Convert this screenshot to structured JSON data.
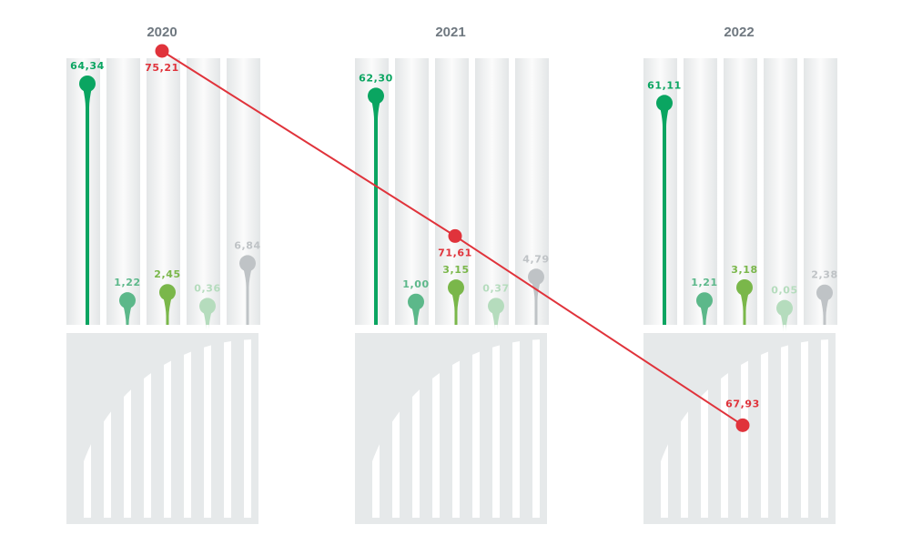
{
  "chart_data": {
    "type": "lollipop",
    "categories": [
      "2020",
      "2021",
      "2022"
    ],
    "series": [
      {
        "values": [
          "64,34",
          "62,30",
          "61,11"
        ],
        "numeric": [
          64.34,
          62.3,
          61.11
        ],
        "color": "#0aa561"
      },
      {
        "values": [
          "1,22",
          "1,00",
          "1,21"
        ],
        "numeric": [
          1.22,
          1.0,
          1.21
        ],
        "color": "#5cb88a"
      },
      {
        "values": [
          "2,45",
          "3,15",
          "3,18"
        ],
        "numeric": [
          2.45,
          3.15,
          3.18
        ],
        "color": "#7ab74a"
      },
      {
        "values": [
          "0,36",
          "0,37",
          "0,05"
        ],
        "numeric": [
          0.36,
          0.37,
          0.05
        ],
        "color": "#b5dcbd"
      },
      {
        "values": [
          "6,84",
          "4,79",
          "2,38"
        ],
        "numeric": [
          6.84,
          4.79,
          2.38
        ],
        "color": "#bfc3c6"
      }
    ],
    "overlay_line": {
      "values": [
        "75,21",
        "71,61",
        "67,93"
      ],
      "numeric": [
        75.21,
        71.61,
        67.93
      ],
      "color": "#e0333b"
    },
    "grid": false,
    "legend": "none"
  }
}
